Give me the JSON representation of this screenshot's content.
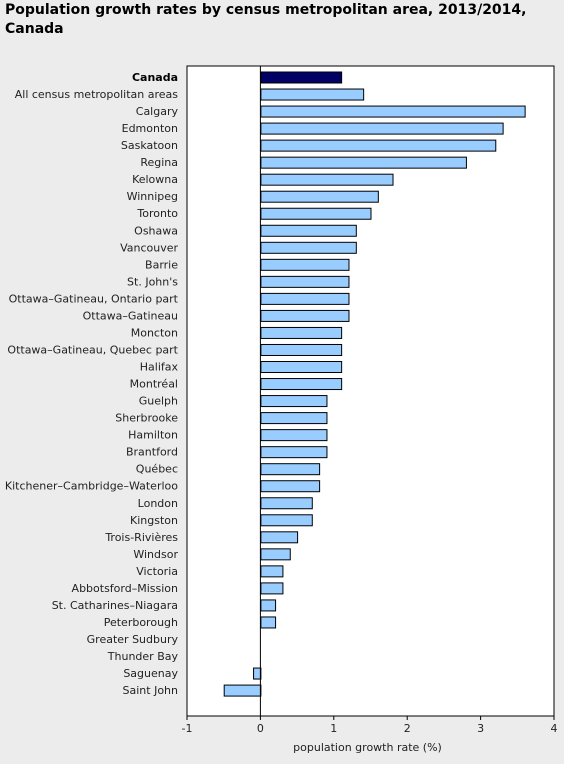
{
  "title": "Population growth rates by census metropolitan area, 2013/2014, Canada",
  "colors": {
    "highlight": "#000066",
    "bar": "#99ccff",
    "bar_stroke": "#000000",
    "background": "#ececec",
    "plot_background": "#ffffff"
  },
  "chart_data": {
    "type": "bar",
    "orientation": "horizontal",
    "title": "Population growth rates by census metropolitan area, 2013/2014, Canada",
    "xlabel": "population growth rate (%)",
    "ylabel": "",
    "xlim": [
      -1,
      4
    ],
    "xticks": [
      -1,
      0,
      1,
      2,
      3,
      4
    ],
    "grid": false,
    "highlight_category": "Canada",
    "categories": [
      "Canada",
      "All census metropolitan areas",
      "Calgary",
      "Edmonton",
      "Saskatoon",
      "Regina",
      "Kelowna",
      "Winnipeg",
      "Toronto",
      "Oshawa",
      "Vancouver",
      "Barrie",
      "St. John's",
      "Ottawa–Gatineau, Ontario part",
      "Ottawa–Gatineau",
      "Moncton",
      "Ottawa–Gatineau, Quebec part",
      "Halifax",
      "Montréal",
      "Guelph",
      "Sherbrooke",
      "Hamilton",
      "Brantford",
      "Québec",
      "Kitchener–Cambridge–Waterloo",
      "London",
      "Kingston",
      "Trois-Rivières",
      "Windsor",
      "Victoria",
      "Abbotsford–Mission",
      "St. Catharines–Niagara",
      "Peterborough",
      "Greater Sudbury",
      "Thunder Bay",
      "Saguenay",
      "Saint John"
    ],
    "values": [
      1.1,
      1.4,
      3.6,
      3.3,
      3.2,
      2.8,
      1.8,
      1.6,
      1.5,
      1.3,
      1.3,
      1.2,
      1.2,
      1.2,
      1.2,
      1.1,
      1.1,
      1.1,
      1.1,
      0.9,
      0.9,
      0.9,
      0.9,
      0.8,
      0.8,
      0.7,
      0.7,
      0.5,
      0.4,
      0.3,
      0.3,
      0.2,
      0.2,
      0.0,
      0.0,
      -0.1,
      -0.5
    ]
  }
}
